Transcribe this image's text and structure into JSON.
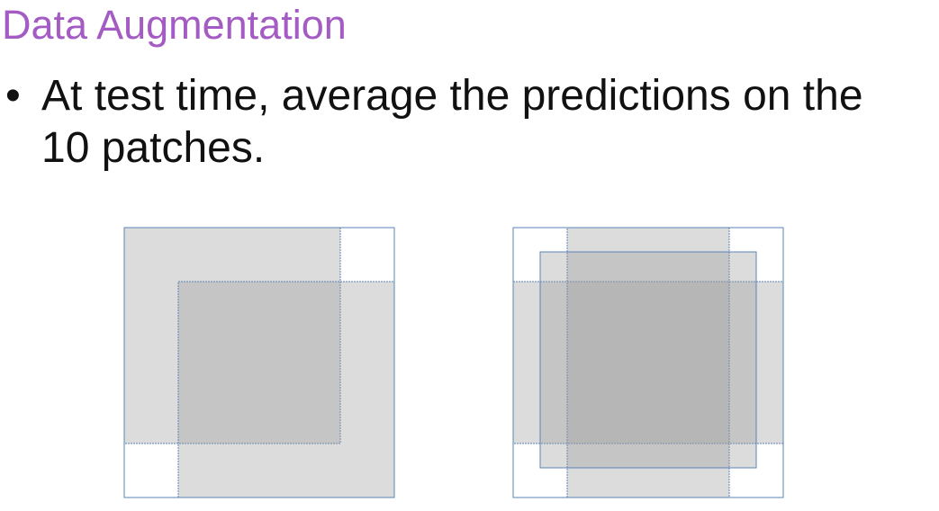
{
  "slide": {
    "title": "Data Augmentation",
    "bullet_symbol": "•",
    "bullet_line_1": "At test time, average the predictions on the",
    "bullet_line_2": "10 patches."
  },
  "colors": {
    "title": "#a45cc4",
    "body_text": "#111111",
    "patch_fill": "#9b9b9b",
    "patch_outline": "#5b83b5",
    "image_fill": "#ffffff"
  },
  "diagrams": [
    {
      "id": "corner-crops",
      "patches": [
        "top-left",
        "bottom-right"
      ]
    },
    {
      "id": "center-and-border-crops",
      "patches": [
        "left-band",
        "top-band",
        "center"
      ]
    }
  ]
}
